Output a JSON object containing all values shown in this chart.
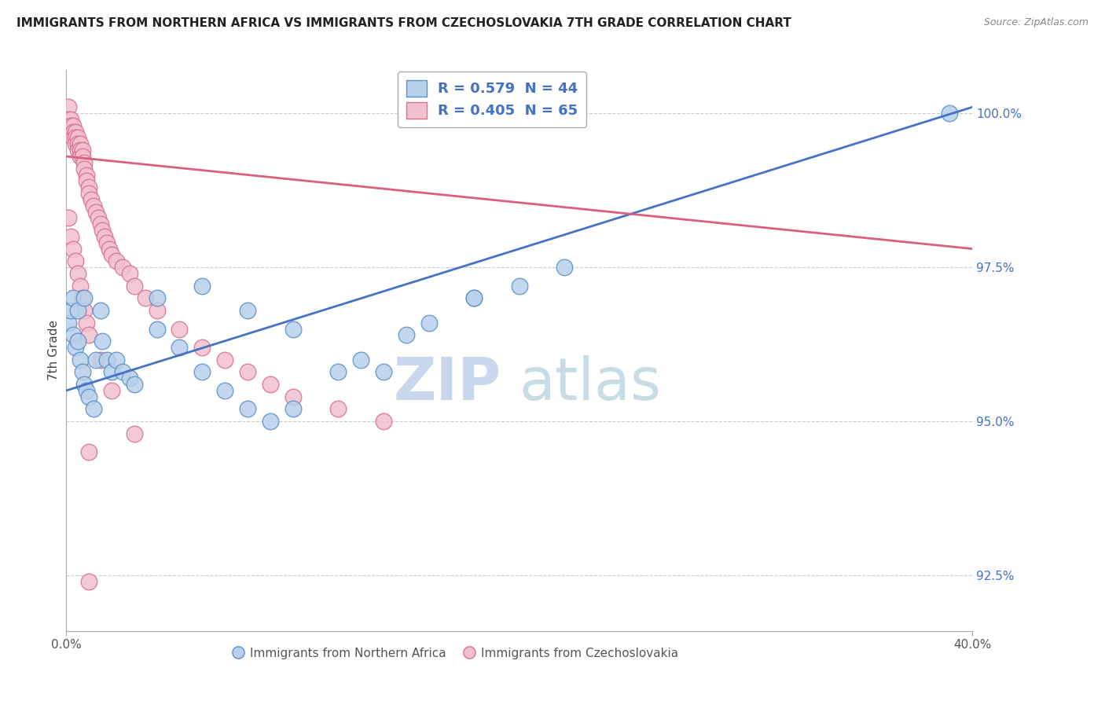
{
  "title": "IMMIGRANTS FROM NORTHERN AFRICA VS IMMIGRANTS FROM CZECHOSLOVAKIA 7TH GRADE CORRELATION CHART",
  "source": "Source: ZipAtlas.com",
  "xlabel_blue": "Immigrants from Northern Africa",
  "xlabel_pink": "Immigrants from Czechoslovakia",
  "ylabel": "7th Grade",
  "xmin": 0.0,
  "xmax": 0.4,
  "ymin": 0.916,
  "ymax": 1.007,
  "ytick_vals": [
    0.925,
    0.95,
    0.975,
    1.0
  ],
  "ytick_labels": [
    "92.5%",
    "95.0%",
    "97.5%",
    "100.0%"
  ],
  "legend_blue_r": "0.579",
  "legend_blue_n": "44",
  "legend_pink_r": "0.405",
  "legend_pink_n": "65",
  "blue_fill": "#b8d0ea",
  "blue_edge": "#5b8fc9",
  "pink_fill": "#f2c0ce",
  "pink_edge": "#d97090",
  "blue_line_color": "#4472c4",
  "pink_line_color": "#d96080",
  "watermark_color": "#dce8f5",
  "blue_x": [
    0.001,
    0.002,
    0.003,
    0.004,
    0.005,
    0.006,
    0.007,
    0.008,
    0.009,
    0.01,
    0.012,
    0.013,
    0.015,
    0.016,
    0.018,
    0.02,
    0.022,
    0.025,
    0.028,
    0.03,
    0.04,
    0.05,
    0.06,
    0.07,
    0.08,
    0.09,
    0.1,
    0.12,
    0.13,
    0.15,
    0.16,
    0.18,
    0.2,
    0.22,
    0.04,
    0.06,
    0.08,
    0.1,
    0.14,
    0.18,
    0.003,
    0.005,
    0.008,
    0.39
  ],
  "blue_y": [
    0.966,
    0.968,
    0.964,
    0.962,
    0.963,
    0.96,
    0.958,
    0.956,
    0.955,
    0.954,
    0.952,
    0.96,
    0.968,
    0.963,
    0.96,
    0.958,
    0.96,
    0.958,
    0.957,
    0.956,
    0.965,
    0.962,
    0.958,
    0.955,
    0.952,
    0.95,
    0.952,
    0.958,
    0.96,
    0.964,
    0.966,
    0.97,
    0.972,
    0.975,
    0.97,
    0.972,
    0.968,
    0.965,
    0.958,
    0.97,
    0.97,
    0.968,
    0.97,
    1.0
  ],
  "pink_x": [
    0.001,
    0.001,
    0.001,
    0.002,
    0.002,
    0.002,
    0.003,
    0.003,
    0.003,
    0.004,
    0.004,
    0.004,
    0.005,
    0.005,
    0.005,
    0.006,
    0.006,
    0.006,
    0.007,
    0.007,
    0.008,
    0.008,
    0.009,
    0.009,
    0.01,
    0.01,
    0.011,
    0.012,
    0.013,
    0.014,
    0.015,
    0.016,
    0.017,
    0.018,
    0.019,
    0.02,
    0.022,
    0.025,
    0.028,
    0.03,
    0.035,
    0.04,
    0.05,
    0.06,
    0.07,
    0.08,
    0.09,
    0.1,
    0.12,
    0.14,
    0.001,
    0.002,
    0.003,
    0.004,
    0.005,
    0.006,
    0.007,
    0.008,
    0.009,
    0.01,
    0.015,
    0.02,
    0.03,
    0.01,
    0.01
  ],
  "pink_y": [
    1.001,
    0.999,
    0.998,
    0.999,
    0.998,
    0.997,
    0.998,
    0.997,
    0.996,
    0.997,
    0.996,
    0.995,
    0.996,
    0.995,
    0.994,
    0.995,
    0.994,
    0.993,
    0.994,
    0.993,
    0.992,
    0.991,
    0.99,
    0.989,
    0.988,
    0.987,
    0.986,
    0.985,
    0.984,
    0.983,
    0.982,
    0.981,
    0.98,
    0.979,
    0.978,
    0.977,
    0.976,
    0.975,
    0.974,
    0.972,
    0.97,
    0.968,
    0.965,
    0.962,
    0.96,
    0.958,
    0.956,
    0.954,
    0.952,
    0.95,
    0.983,
    0.98,
    0.978,
    0.976,
    0.974,
    0.972,
    0.97,
    0.968,
    0.966,
    0.964,
    0.96,
    0.955,
    0.948,
    0.945,
    0.924
  ],
  "blue_line_x0": 0.0,
  "blue_line_x1": 0.4,
  "blue_line_y0": 0.955,
  "blue_line_y1": 1.001,
  "pink_line_x0": 0.0,
  "pink_line_x1": 0.4,
  "pink_line_y0": 0.993,
  "pink_line_y1": 0.978
}
